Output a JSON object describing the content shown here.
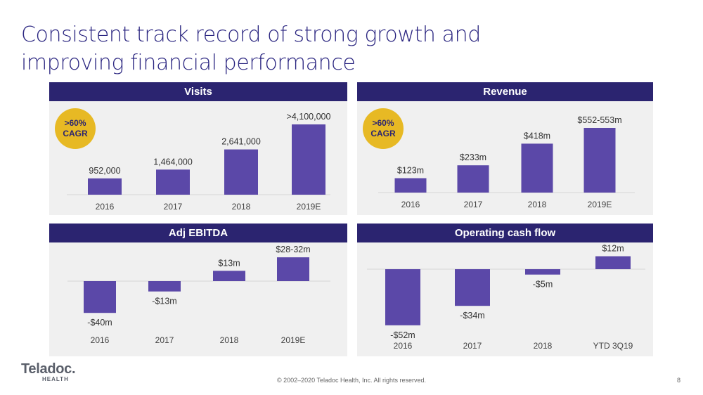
{
  "title": {
    "line1": "Consistent track record of strong growth and",
    "line2": "improving financial performance"
  },
  "colors": {
    "bar": "#5b48a8",
    "header": "#2b2470",
    "badge": "#e7b924",
    "panel": "#f0f0f0"
  },
  "panels": {
    "visits": {
      "title": "Visits",
      "badge_line1": ">60%",
      "badge_line2": "CAGR"
    },
    "revenue": {
      "title": "Revenue",
      "badge_line1": ">60%",
      "badge_line2": "CAGR"
    },
    "ebitda": {
      "title": "Adj EBITDA"
    },
    "cashflow": {
      "title": "Operating cash flow"
    }
  },
  "chart_data": [
    {
      "type": "bar",
      "title": "Visits",
      "categories": [
        "2016",
        "2017",
        "2018",
        "2019E"
      ],
      "values": [
        952000,
        1464000,
        2641000,
        4100000
      ],
      "labels": [
        "952,000",
        "1,464,000",
        "2,641,000",
        ">4,100,000"
      ]
    },
    {
      "type": "bar",
      "title": "Revenue",
      "categories": [
        "2016",
        "2017",
        "2018",
        "2019E"
      ],
      "values": [
        123,
        233,
        418,
        552.5
      ],
      "labels": [
        "$123m",
        "$233m",
        "$418m",
        "$552-553m"
      ]
    },
    {
      "type": "bar",
      "title": "Adj EBITDA",
      "categories": [
        "2016",
        "2017",
        "2018",
        "2019E"
      ],
      "values": [
        -40,
        -13,
        13,
        30
      ],
      "labels": [
        "-$40m",
        "-$13m",
        "$13m",
        "$28-32m"
      ]
    },
    {
      "type": "bar",
      "title": "Operating cash flow",
      "categories": [
        "2016",
        "2017",
        "2018",
        "YTD 3Q19"
      ],
      "values": [
        -52,
        -34,
        -5,
        12
      ],
      "labels": [
        "-$52m",
        "-$34m",
        "-$5m",
        "$12m"
      ]
    }
  ],
  "footer": {
    "logo": "Teladoc.",
    "logo_sub": "HEALTH",
    "copyright": "© 2002–2020 Teladoc Health, Inc. All rights reserved.",
    "page": "8"
  }
}
